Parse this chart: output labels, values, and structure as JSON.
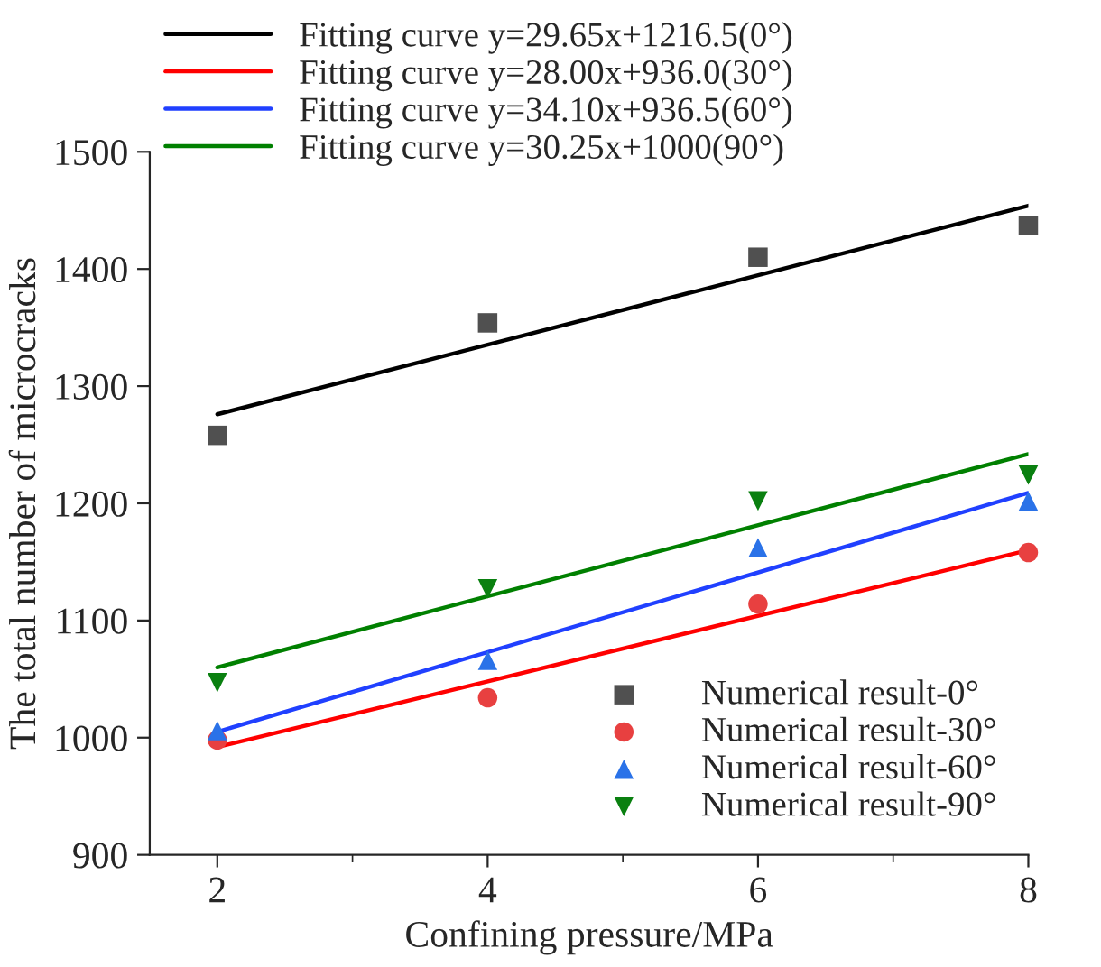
{
  "chart_data": {
    "type": "scatter",
    "xlabel": "Confining pressure/MPa",
    "ylabel": "The total number of microcracks",
    "xlim": [
      1.5,
      8
    ],
    "xticks": [
      2,
      4,
      6,
      8
    ],
    "ylim": [
      900,
      1500
    ],
    "yticks": [
      900,
      1000,
      1100,
      1200,
      1300,
      1400,
      1500
    ],
    "grid": false,
    "legend": "top left",
    "series": [
      {
        "type": "line",
        "name": "Fitting curve y=29.65x+1216.5(0°)",
        "color": "#000000",
        "x": [
          2,
          8
        ],
        "values": [
          1276,
          1454
        ],
        "marker": "none",
        "line_style": "solid"
      },
      {
        "type": "line",
        "name": "Fitting curve y=28.00x+936.0(30°)",
        "color": "#ff0000",
        "x": [
          2,
          8
        ],
        "values": [
          992,
          1160
        ],
        "marker": "none",
        "line_style": "solid"
      },
      {
        "type": "line",
        "name": "Fitting curve y=34.10x+936.5(60°)",
        "color": "#2040ff",
        "x": [
          2,
          8
        ],
        "values": [
          1005,
          1209
        ],
        "marker": "none",
        "line_style": "solid"
      },
      {
        "type": "line",
        "name": "Fitting curve y=30.25x+1000(90°)",
        "color": "#008000",
        "x": [
          2,
          8
        ],
        "values": [
          1060,
          1242
        ],
        "marker": "none",
        "line_style": "solid"
      },
      {
        "name": "Numerical result-0°",
        "color": "#505050",
        "x": [
          2,
          4,
          6,
          8
        ],
        "values": [
          1258,
          1354,
          1410,
          1437
        ],
        "marker": "square"
      },
      {
        "name": "Numerical result-30°",
        "color": "#e84040",
        "x": [
          2,
          4,
          6,
          8
        ],
        "values": [
          998,
          1034,
          1114,
          1158
        ],
        "marker": "circle"
      },
      {
        "name": "Numerical result-60°",
        "color": "#2a72e8",
        "x": [
          2,
          4,
          6,
          8
        ],
        "values": [
          1006,
          1066,
          1162,
          1202
        ],
        "marker": "triangle"
      },
      {
        "name": "Numerical result-90°",
        "color": "#0a8010",
        "x": [
          2,
          4,
          6,
          8
        ],
        "values": [
          1047,
          1127,
          1202,
          1224
        ],
        "marker": "triangle_down"
      }
    ]
  }
}
